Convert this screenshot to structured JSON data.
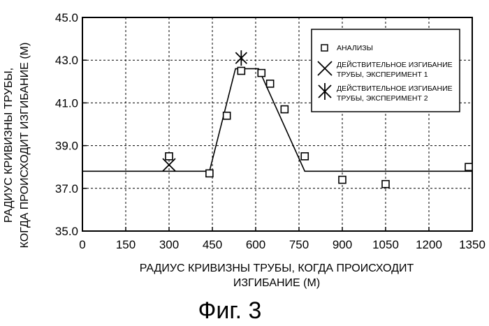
{
  "chart_data": {
    "type": "scatter",
    "xlabel_lines": [
      "РАДИУС КРИВИЗНЫ ТРУБЫ, КОГДА ПРОИСХОДИТ",
      "ИЗГИБАНИЕ (М)"
    ],
    "ylabel_lines": [
      "РАДИУС КРИВИЗНЫ ТРУБЫ,",
      "КОГДА ПРОИСХОДИТ ИЗГИБАНИЕ (М)"
    ],
    "caption": "Фиг. 3",
    "xlim": [
      0,
      1350
    ],
    "ylim": [
      35.0,
      45.0
    ],
    "x_ticks": [
      0,
      150,
      300,
      450,
      600,
      750,
      900,
      1050,
      1200,
      1350
    ],
    "x_tick_labels": [
      "0",
      "150",
      "300",
      "450",
      "600",
      "750",
      "900",
      "1050",
      "1200",
      "1350"
    ],
    "y_ticks": [
      35.0,
      37.0,
      39.0,
      41.0,
      43.0,
      45.0
    ],
    "y_tick_labels": [
      "35.0",
      "37.0",
      "39.0",
      "41.0",
      "43.0",
      "45.0"
    ],
    "grid": true,
    "legend_position": "top-right",
    "series": [
      {
        "name": "АНАЛИЗЫ",
        "marker": "square",
        "points": [
          [
            300,
            38.5
          ],
          [
            440,
            37.7
          ],
          [
            500,
            40.4
          ],
          [
            550,
            42.5
          ],
          [
            620,
            42.4
          ],
          [
            650,
            41.9
          ],
          [
            700,
            40.7
          ],
          [
            770,
            38.5
          ],
          [
            900,
            37.4
          ],
          [
            1050,
            37.2
          ],
          [
            1350,
            38.0
          ]
        ]
      },
      {
        "name_lines": [
          "ДЕЙСТВИТЕЛЬНОЕ ИЗГИБАНИЕ",
          "ТРУБЫ, ЭКСПЕРИМЕНТ 1"
        ],
        "marker": "x",
        "points": [
          [
            300,
            38.1
          ]
        ]
      },
      {
        "name_lines": [
          "ДЕЙСТВИТЕЛЬНОЕ ИЗГИБАНИЕ",
          "ТРУБЫ, ЭКСПЕРИМЕНТ 2"
        ],
        "marker": "asterisk",
        "points": [
          [
            550,
            43.1
          ]
        ]
      }
    ],
    "curve": {
      "points": [
        [
          0,
          37.8
        ],
        [
          440,
          37.8
        ],
        [
          530,
          42.6
        ],
        [
          610,
          42.6
        ],
        [
          770,
          37.8
        ],
        [
          1350,
          37.8
        ]
      ]
    }
  }
}
